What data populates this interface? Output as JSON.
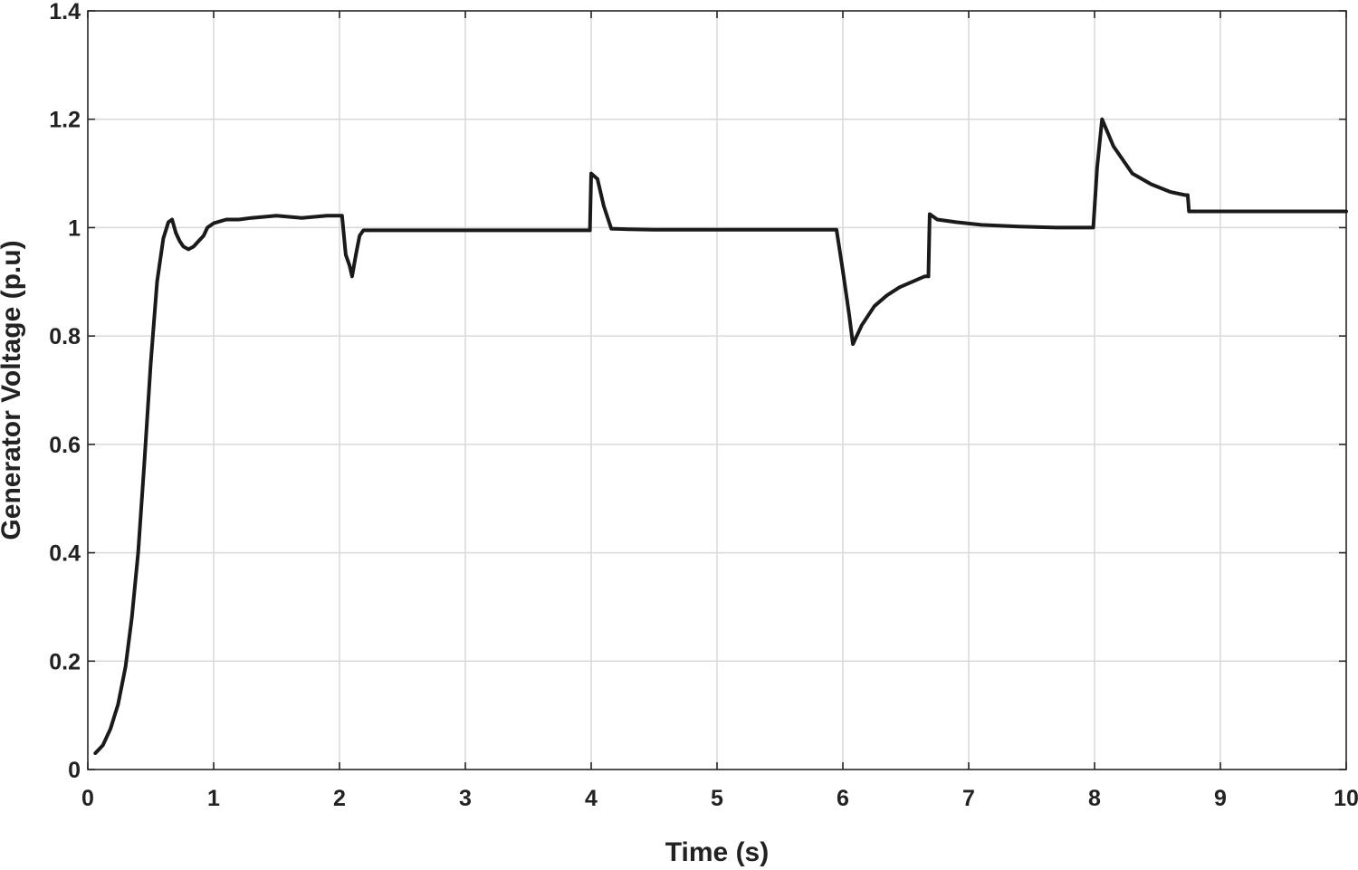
{
  "chart_data": {
    "type": "line",
    "title": "",
    "xlabel": "Time (s)",
    "ylabel": "Generator Voltage (p.u)",
    "xlim": [
      0,
      10
    ],
    "ylim": [
      0,
      1.4
    ],
    "xticks": [
      "0",
      "1",
      "2",
      "3",
      "4",
      "5",
      "6",
      "7",
      "8",
      "9",
      "10"
    ],
    "yticks": [
      "0",
      "0.2",
      "0.4",
      "0.6",
      "0.8",
      "1",
      "1.2",
      "1.4"
    ],
    "grid": true,
    "line_color": "#1a1a1a",
    "series": [
      {
        "x": [
          0.06,
          0.12,
          0.18,
          0.24,
          0.3,
          0.35,
          0.4,
          0.45,
          0.5,
          0.55,
          0.6,
          0.64,
          0.67,
          0.7,
          0.73,
          0.76,
          0.8,
          0.84,
          0.88,
          0.92,
          0.95,
          1.0,
          1.1,
          1.2,
          1.3,
          1.4,
          1.5,
          1.6,
          1.7,
          1.8,
          1.9,
          2.0,
          2.02,
          2.05,
          2.08,
          2.1,
          2.13,
          2.16,
          2.19,
          2.3,
          2.5,
          3.0,
          3.5,
          3.99,
          4.0,
          4.05,
          4.1,
          4.16,
          4.3,
          4.5,
          5.0,
          5.5,
          5.95,
          6.0,
          6.05,
          6.08,
          6.15,
          6.25,
          6.35,
          6.45,
          6.55,
          6.65,
          6.68,
          6.69,
          6.75,
          6.9,
          7.1,
          7.4,
          7.7,
          7.99,
          8.02,
          8.06,
          8.15,
          8.3,
          8.45,
          8.6,
          8.72,
          8.74,
          8.75,
          9.0,
          9.5,
          10.0
        ],
        "y": [
          0.03,
          0.045,
          0.075,
          0.12,
          0.19,
          0.28,
          0.4,
          0.57,
          0.75,
          0.9,
          0.98,
          1.01,
          1.015,
          0.99,
          0.975,
          0.965,
          0.96,
          0.965,
          0.975,
          0.985,
          1.0,
          1.008,
          1.015,
          1.015,
          1.018,
          1.02,
          1.022,
          1.02,
          1.018,
          1.02,
          1.022,
          1.022,
          1.022,
          0.95,
          0.93,
          0.91,
          0.95,
          0.985,
          0.995,
          0.995,
          0.995,
          0.995,
          0.995,
          0.995,
          1.1,
          1.09,
          1.04,
          0.998,
          0.997,
          0.996,
          0.996,
          0.996,
          0.996,
          0.92,
          0.84,
          0.785,
          0.82,
          0.855,
          0.875,
          0.89,
          0.9,
          0.91,
          0.91,
          1.025,
          1.015,
          1.01,
          1.005,
          1.002,
          1.0,
          1.0,
          1.11,
          1.2,
          1.15,
          1.1,
          1.08,
          1.066,
          1.06,
          1.06,
          1.03,
          1.03,
          1.03,
          1.03
        ]
      }
    ]
  }
}
